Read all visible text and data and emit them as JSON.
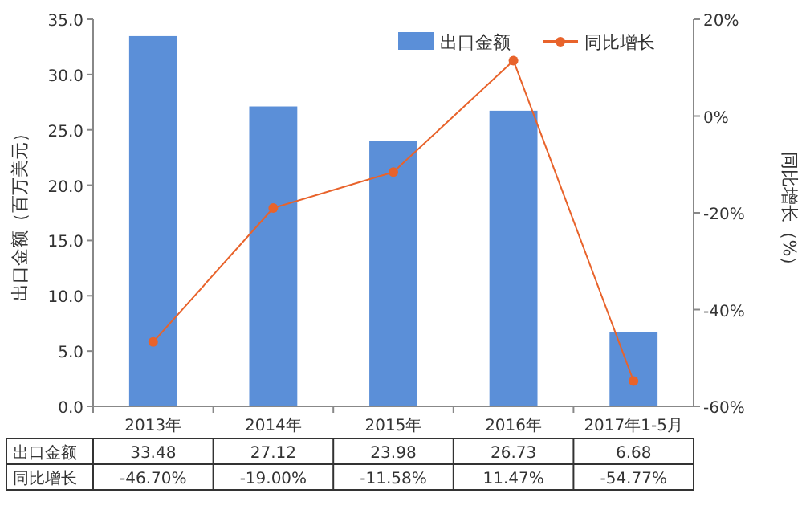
{
  "chart_data": {
    "type": "bar",
    "ylabel": "出口金额（百万美元）",
    "y2label": "同比增长（%）",
    "categories": [
      "2013年",
      "2014年",
      "2015年",
      "2016年",
      "2017年1-5月"
    ],
    "series": [
      {
        "name": "出口金额",
        "color": "#5b8fd8",
        "values": [
          33.48,
          27.12,
          23.98,
          26.73,
          6.68
        ],
        "value_labels": [
          "33.48",
          "27.12",
          "23.98",
          "26.73",
          "6.68"
        ]
      },
      {
        "name": "同比增长",
        "type": "line",
        "axis": "y2",
        "color": "#e8632b",
        "marker": "circle",
        "values": [
          -46.7,
          -19.0,
          -11.58,
          11.47,
          -54.77
        ],
        "value_labels": [
          "-46.70%",
          "-19.00%",
          "-11.58%",
          "11.47%",
          "-54.77%"
        ]
      }
    ],
    "ylim": [
      0,
      35
    ],
    "yticks": [
      {
        "value": 0,
        "label": "0.0"
      },
      {
        "value": 5,
        "label": "5.0"
      },
      {
        "value": 10,
        "label": "10.0"
      },
      {
        "value": 15,
        "label": "15.0"
      },
      {
        "value": 20,
        "label": "20.0"
      },
      {
        "value": 25,
        "label": "25.0"
      },
      {
        "value": 30,
        "label": "30.0"
      },
      {
        "value": 35,
        "label": "35.0"
      }
    ],
    "y2lim": [
      -60,
      20
    ],
    "y2ticks": [
      {
        "value": -60,
        "label": "-60%"
      },
      {
        "value": -40,
        "label": "-40%"
      },
      {
        "value": -20,
        "label": "-20%"
      },
      {
        "value": 0,
        "label": "0%"
      },
      {
        "value": 20,
        "label": "20%"
      }
    ],
    "legend": "top right",
    "grid": false
  }
}
